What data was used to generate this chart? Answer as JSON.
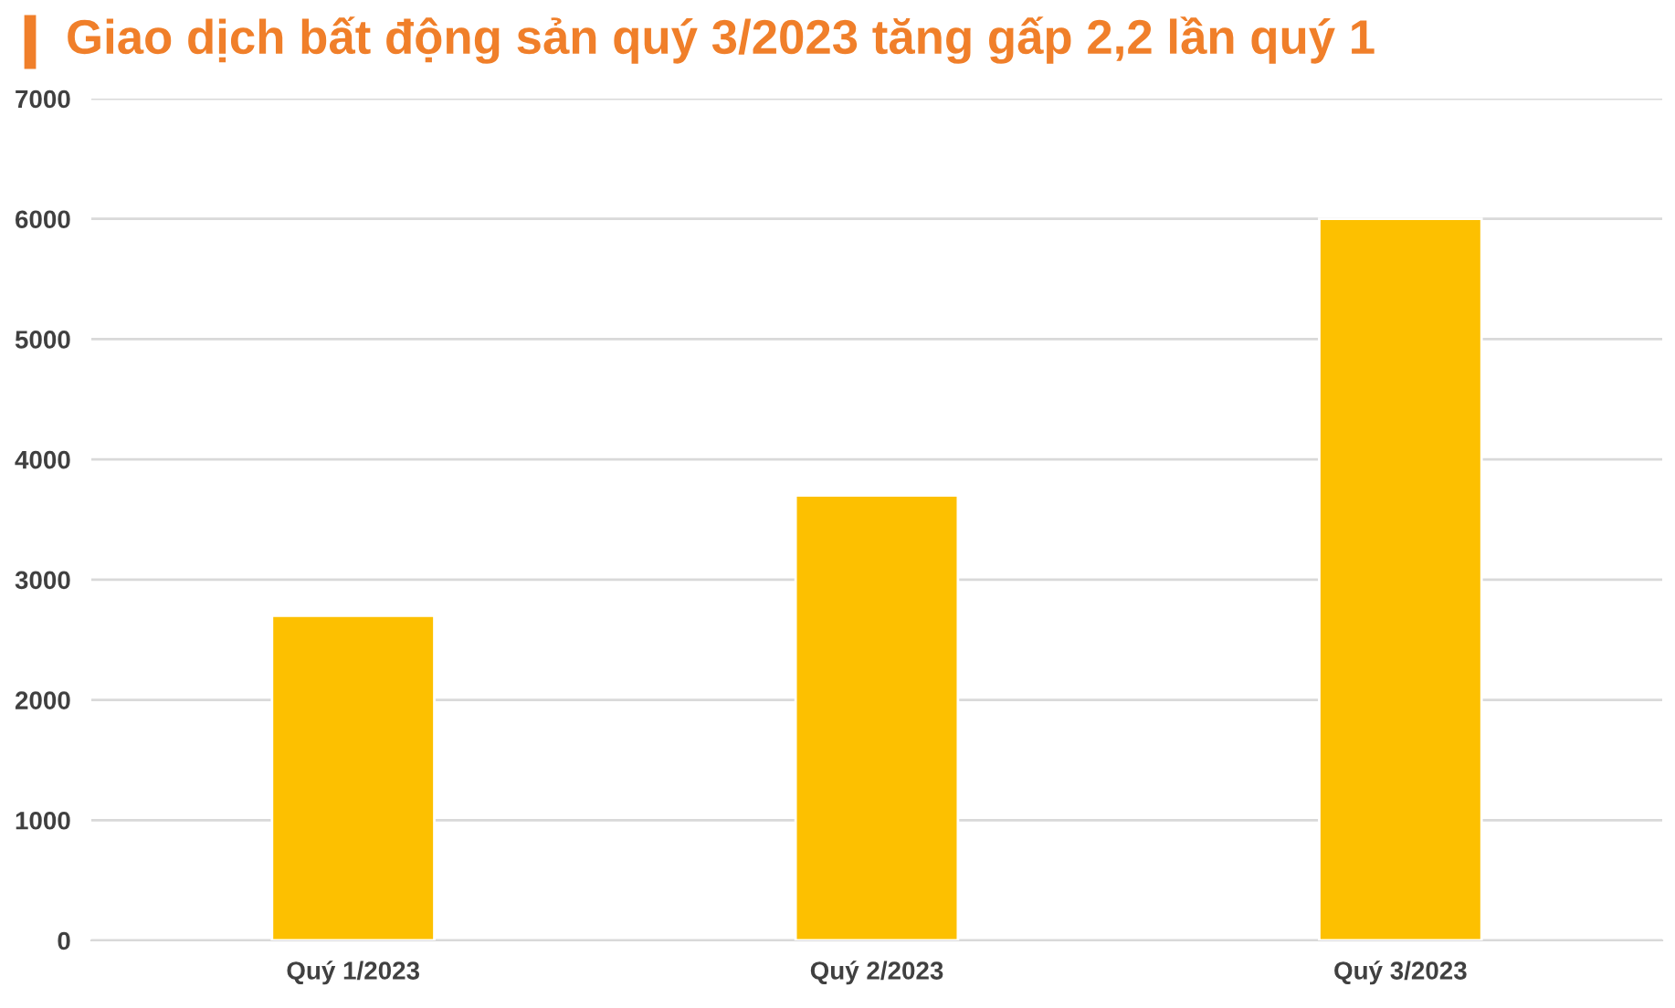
{
  "chart_data": {
    "type": "bar",
    "title": "Giao dịch bất động sản quý 3/2023 tăng gấp 2,2 lần quý 1",
    "categories": [
      "Quý 1/2023",
      "Quý 2/2023",
      "Quý 3/2023"
    ],
    "values": [
      2700,
      3700,
      6000
    ],
    "color": "#fdc000",
    "ylim": [
      0,
      7000
    ],
    "yticks": [
      0,
      1000,
      2000,
      3000,
      4000,
      5000,
      6000,
      7000
    ],
    "grid": "y",
    "legend": false
  }
}
